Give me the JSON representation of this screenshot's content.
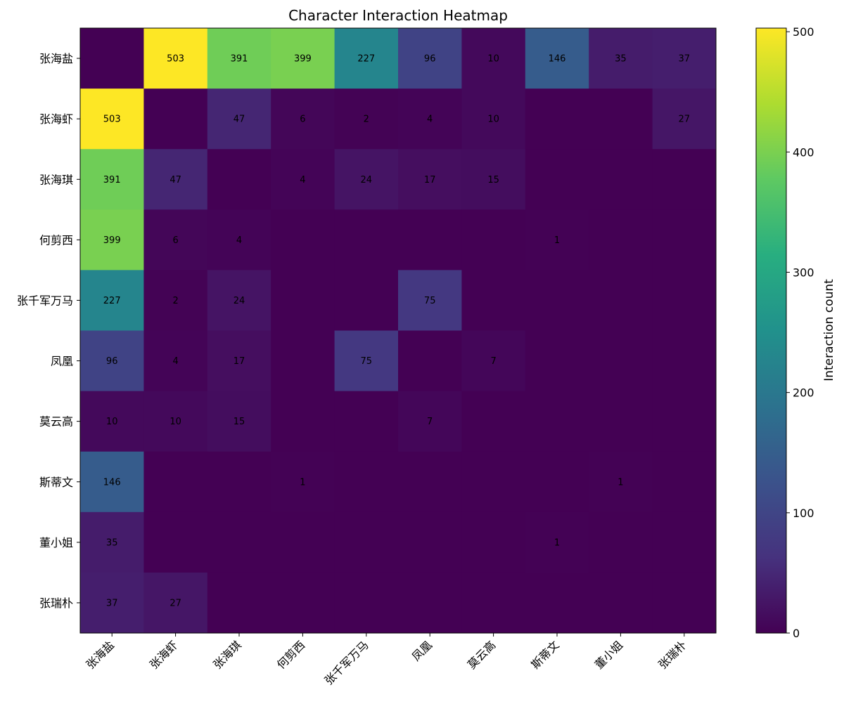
{
  "chart_data": {
    "type": "heatmap",
    "title": "Character Interaction Heatmap",
    "rows": [
      "张海盐",
      "张海虾",
      "张海琪",
      "何剪西",
      "张千军万马",
      "凤凰",
      "莫云高",
      "斯蒂文",
      "董小姐",
      "张瑞朴"
    ],
    "columns": [
      "张海盐",
      "张海虾",
      "张海琪",
      "何剪西",
      "张千军万马",
      "凤凰",
      "莫云高",
      "斯蒂文",
      "董小姐",
      "张瑞朴"
    ],
    "values": [
      [
        0,
        503,
        391,
        399,
        227,
        96,
        10,
        146,
        35,
        37
      ],
      [
        503,
        0,
        47,
        6,
        2,
        4,
        10,
        0,
        0,
        27
      ],
      [
        391,
        47,
        0,
        4,
        24,
        17,
        15,
        0,
        0,
        0
      ],
      [
        399,
        6,
        4,
        0,
        0,
        0,
        0,
        1,
        0,
        0
      ],
      [
        227,
        2,
        24,
        0,
        0,
        75,
        0,
        0,
        0,
        0
      ],
      [
        96,
        4,
        17,
        0,
        75,
        0,
        7,
        0,
        0,
        0
      ],
      [
        10,
        10,
        15,
        0,
        0,
        7,
        0,
        0,
        0,
        0
      ],
      [
        146,
        0,
        0,
        1,
        0,
        0,
        0,
        0,
        1,
        0
      ],
      [
        35,
        0,
        0,
        0,
        0,
        0,
        0,
        1,
        0,
        0
      ],
      [
        37,
        27,
        0,
        0,
        0,
        0,
        0,
        0,
        0,
        0
      ]
    ],
    "show_zero_labels": false,
    "colormap": "viridis",
    "vmin": 0,
    "vmax": 503,
    "colorbar": {
      "label": "Interaction count",
      "ticks": [
        0,
        100,
        200,
        300,
        400,
        500
      ]
    }
  }
}
